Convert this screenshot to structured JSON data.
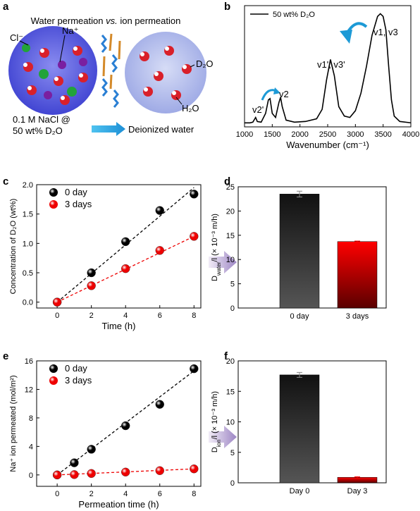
{
  "diagram": {
    "label": "a",
    "title": {
      "main": "Water permeation ",
      "italic": "vs.",
      "rest": " ion permeation"
    },
    "labels": {
      "chloride": "Cl⁻",
      "sodium": "Na⁺",
      "d2o": "D₂O",
      "h2o": "H₂O",
      "feed_line1": "0.1 M NaCl @",
      "feed_line2": "50 wt% D₂O",
      "product": "Deionized water"
    }
  },
  "chart_data": [
    {
      "label": "b",
      "type": "line",
      "x": [
        1000,
        1100,
        1150,
        1200,
        1230,
        1300,
        1380,
        1430,
        1460,
        1500,
        1560,
        1620,
        1650,
        1680,
        1750,
        1900,
        2100,
        2300,
        2400,
        2480,
        2550,
        2620,
        2700,
        2800,
        2900,
        3000,
        3100,
        3200,
        3300,
        3400,
        3450,
        3500,
        3550,
        3600,
        3650,
        3700,
        3800,
        4000
      ],
      "series": [
        {
          "name": "50 wt% D₂O",
          "color": "#000000",
          "values": [
            0.03,
            0.03,
            0.035,
            0.07,
            0.04,
            0.035,
            0.1,
            0.2,
            0.21,
            0.1,
            0.07,
            0.18,
            0.22,
            0.15,
            0.05,
            0.035,
            0.04,
            0.06,
            0.13,
            0.35,
            0.5,
            0.38,
            0.15,
            0.08,
            0.07,
            0.12,
            0.25,
            0.45,
            0.68,
            0.82,
            0.84,
            0.82,
            0.72,
            0.45,
            0.2,
            0.08,
            0.04,
            0.03
          ]
        }
      ],
      "xlim": [
        1000,
        4000
      ],
      "ylim": [
        0,
        0.9
      ],
      "xticks": [
        1000,
        1500,
        2000,
        2500,
        3000,
        3500,
        4000
      ],
      "xlabel": "Wavenumber (cm⁻¹)",
      "annotations": [
        "v2'",
        "v2",
        "v1', v3'",
        "v1, v3"
      ]
    },
    {
      "label": "c",
      "type": "scatter",
      "x": [
        0,
        2,
        4,
        6,
        8
      ],
      "trend_x": [
        0,
        8
      ],
      "series": [
        {
          "name": "0 day",
          "color": "#000000",
          "values": [
            0,
            0.5,
            1.03,
            1.56,
            1.84
          ],
          "trend": [
            0,
            1.95
          ]
        },
        {
          "name": "3 days",
          "color": "#ee0000",
          "values": [
            0,
            0.28,
            0.57,
            0.88,
            1.12
          ],
          "trend": [
            0,
            1.12
          ]
        }
      ],
      "xlim": [
        -1.2,
        8.4
      ],
      "ylim": [
        -0.1,
        2.0
      ],
      "xticks": [
        0,
        2,
        4,
        6,
        8
      ],
      "yticks": [
        {
          "value": 0,
          "label": "0.0"
        },
        0.5,
        {
          "value": 1,
          "label": "1.0"
        },
        1.5,
        {
          "value": 2,
          "label": "2.0"
        }
      ],
      "xlabel": "Time (h)",
      "ylabel": "Concentration of D₂O (wt%)"
    },
    {
      "label": "d",
      "type": "bar",
      "categories": [
        "0 day",
        "3 days"
      ],
      "values": [
        23.5,
        13.7
      ],
      "errors": [
        0.6,
        0.1
      ],
      "colors": [
        "#111111",
        "#ff0000"
      ],
      "ylim": [
        0,
        25
      ],
      "yticks": [
        0,
        5,
        10,
        15,
        20,
        25
      ],
      "ylabel": {
        "main": "D",
        "sub": "water",
        "rest": "/l (× 10⁻³ m/h)"
      }
    },
    {
      "label": "e",
      "type": "scatter",
      "x": [
        0,
        1,
        2,
        4,
        6,
        8
      ],
      "trend_x": [
        0,
        8
      ],
      "series": [
        {
          "name": "0 day",
          "color": "#000000",
          "values": [
            0,
            1.7,
            3.6,
            6.9,
            9.9,
            14.9
          ],
          "trend": [
            0,
            14.6
          ]
        },
        {
          "name": "3 days",
          "color": "#ee0000",
          "values": [
            0,
            0.05,
            0.2,
            0.4,
            0.6,
            0.85
          ],
          "trend": [
            0,
            0.85
          ]
        }
      ],
      "xlim": [
        -1.2,
        8.4
      ],
      "ylim": [
        -1.6,
        16
      ],
      "xticks": [
        0,
        2,
        4,
        6,
        8
      ],
      "yticks": [
        0,
        4,
        8,
        12,
        16
      ],
      "xlabel": "Permeation time (h)",
      "ylabel": "Na⁺ ion permeated (mol/m²)"
    },
    {
      "label": "f",
      "type": "bar",
      "categories": [
        "Day 0",
        "Day 3"
      ],
      "values": [
        17.7,
        0.9
      ],
      "errors": [
        0.4,
        0.1
      ],
      "colors": [
        "#111111",
        "#ff0000"
      ],
      "ylim": [
        0,
        20
      ],
      "yticks": [
        0,
        5,
        10,
        15,
        20
      ],
      "ylabel": {
        "main": "D",
        "sub": "ion",
        "rest": "/l (× 10⁻³ m/h)"
      }
    }
  ]
}
